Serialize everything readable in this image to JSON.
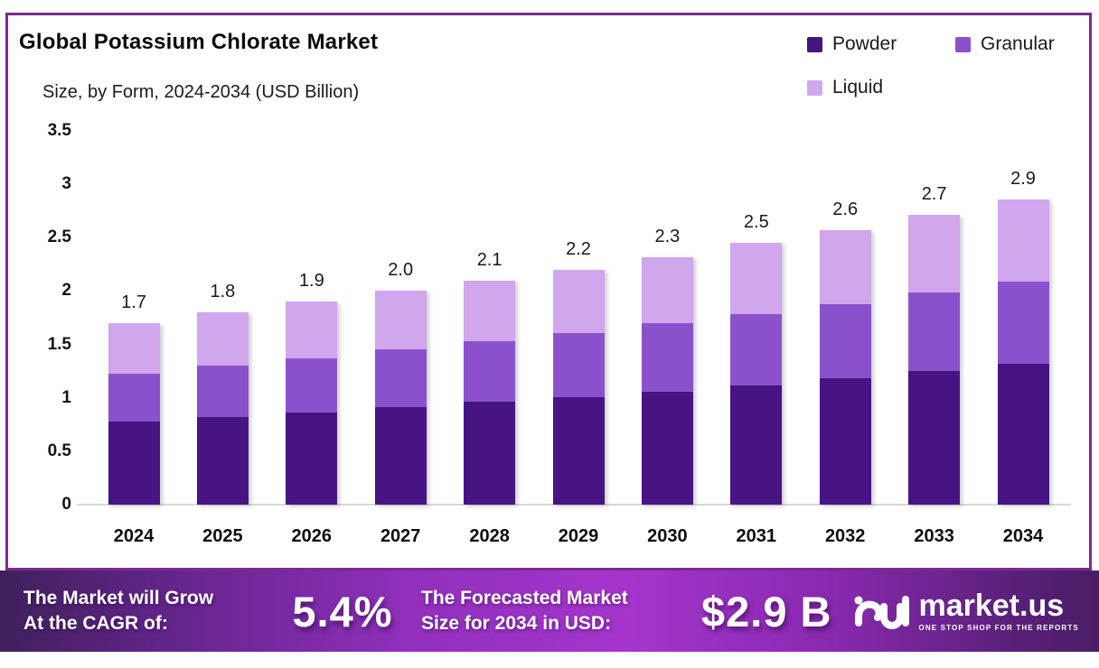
{
  "chart": {
    "title": "Global Potassium Chlorate Market",
    "subtitle": "Size, by Form, 2024-2034 (USD Billion)"
  },
  "chart_data": {
    "type": "bar",
    "stacked": true,
    "title": "Global Potassium Chlorate Market Size, by Form, 2024-2034 (USD Billion)",
    "categories": [
      "2024",
      "2025",
      "2026",
      "2027",
      "2028",
      "2029",
      "2030",
      "2031",
      "2032",
      "2033",
      "2034"
    ],
    "series": [
      {
        "name": "Powder",
        "color": "#471483",
        "values": [
          0.78,
          0.82,
          0.86,
          0.91,
          0.96,
          1.01,
          1.06,
          1.12,
          1.18,
          1.25,
          1.32
        ]
      },
      {
        "name": "Granular",
        "color": "#8b51cc",
        "values": [
          0.45,
          0.48,
          0.51,
          0.54,
          0.57,
          0.6,
          0.64,
          0.66,
          0.7,
          0.74,
          0.77
        ]
      },
      {
        "name": "Liquid",
        "color": "#d0a6ec",
        "values": [
          0.47,
          0.5,
          0.53,
          0.55,
          0.57,
          0.59,
          0.62,
          0.67,
          0.69,
          0.72,
          0.77
        ]
      }
    ],
    "totals_labels": [
      "1.7",
      "1.8",
      "1.9",
      "2.0",
      "2.1",
      "2.2",
      "2.3",
      "2.5",
      "2.6",
      "2.7",
      "2.9"
    ],
    "xlabel": "",
    "ylabel": "",
    "ylim": [
      0,
      3.5
    ],
    "yticks": [
      "0",
      "0.5",
      "1",
      "1.5",
      "2",
      "2.5",
      "3",
      "3.5"
    ],
    "grid": false,
    "legend_position": "top-right"
  },
  "banner": {
    "growth_label_line1": "The Market will Grow",
    "growth_label_line2": "At the CAGR of:",
    "cagr_value": "5.4%",
    "forecast_label_line1": "The Forecasted Market",
    "forecast_label_line2": "Size for 2034 in USD:",
    "forecast_value": "$2.9 B",
    "logo_text": "market.us",
    "logo_tagline": "ONE STOP SHOP FOR THE REPORTS"
  },
  "colors": {
    "panel_border": "#7b2b8f",
    "axis_line": "#d8d8d8",
    "banner_gradient": [
      "#40205c",
      "#a535cd",
      "#4a1d66"
    ],
    "powder": "#471483",
    "granular": "#8b51cc",
    "liquid": "#d0a6ec"
  }
}
